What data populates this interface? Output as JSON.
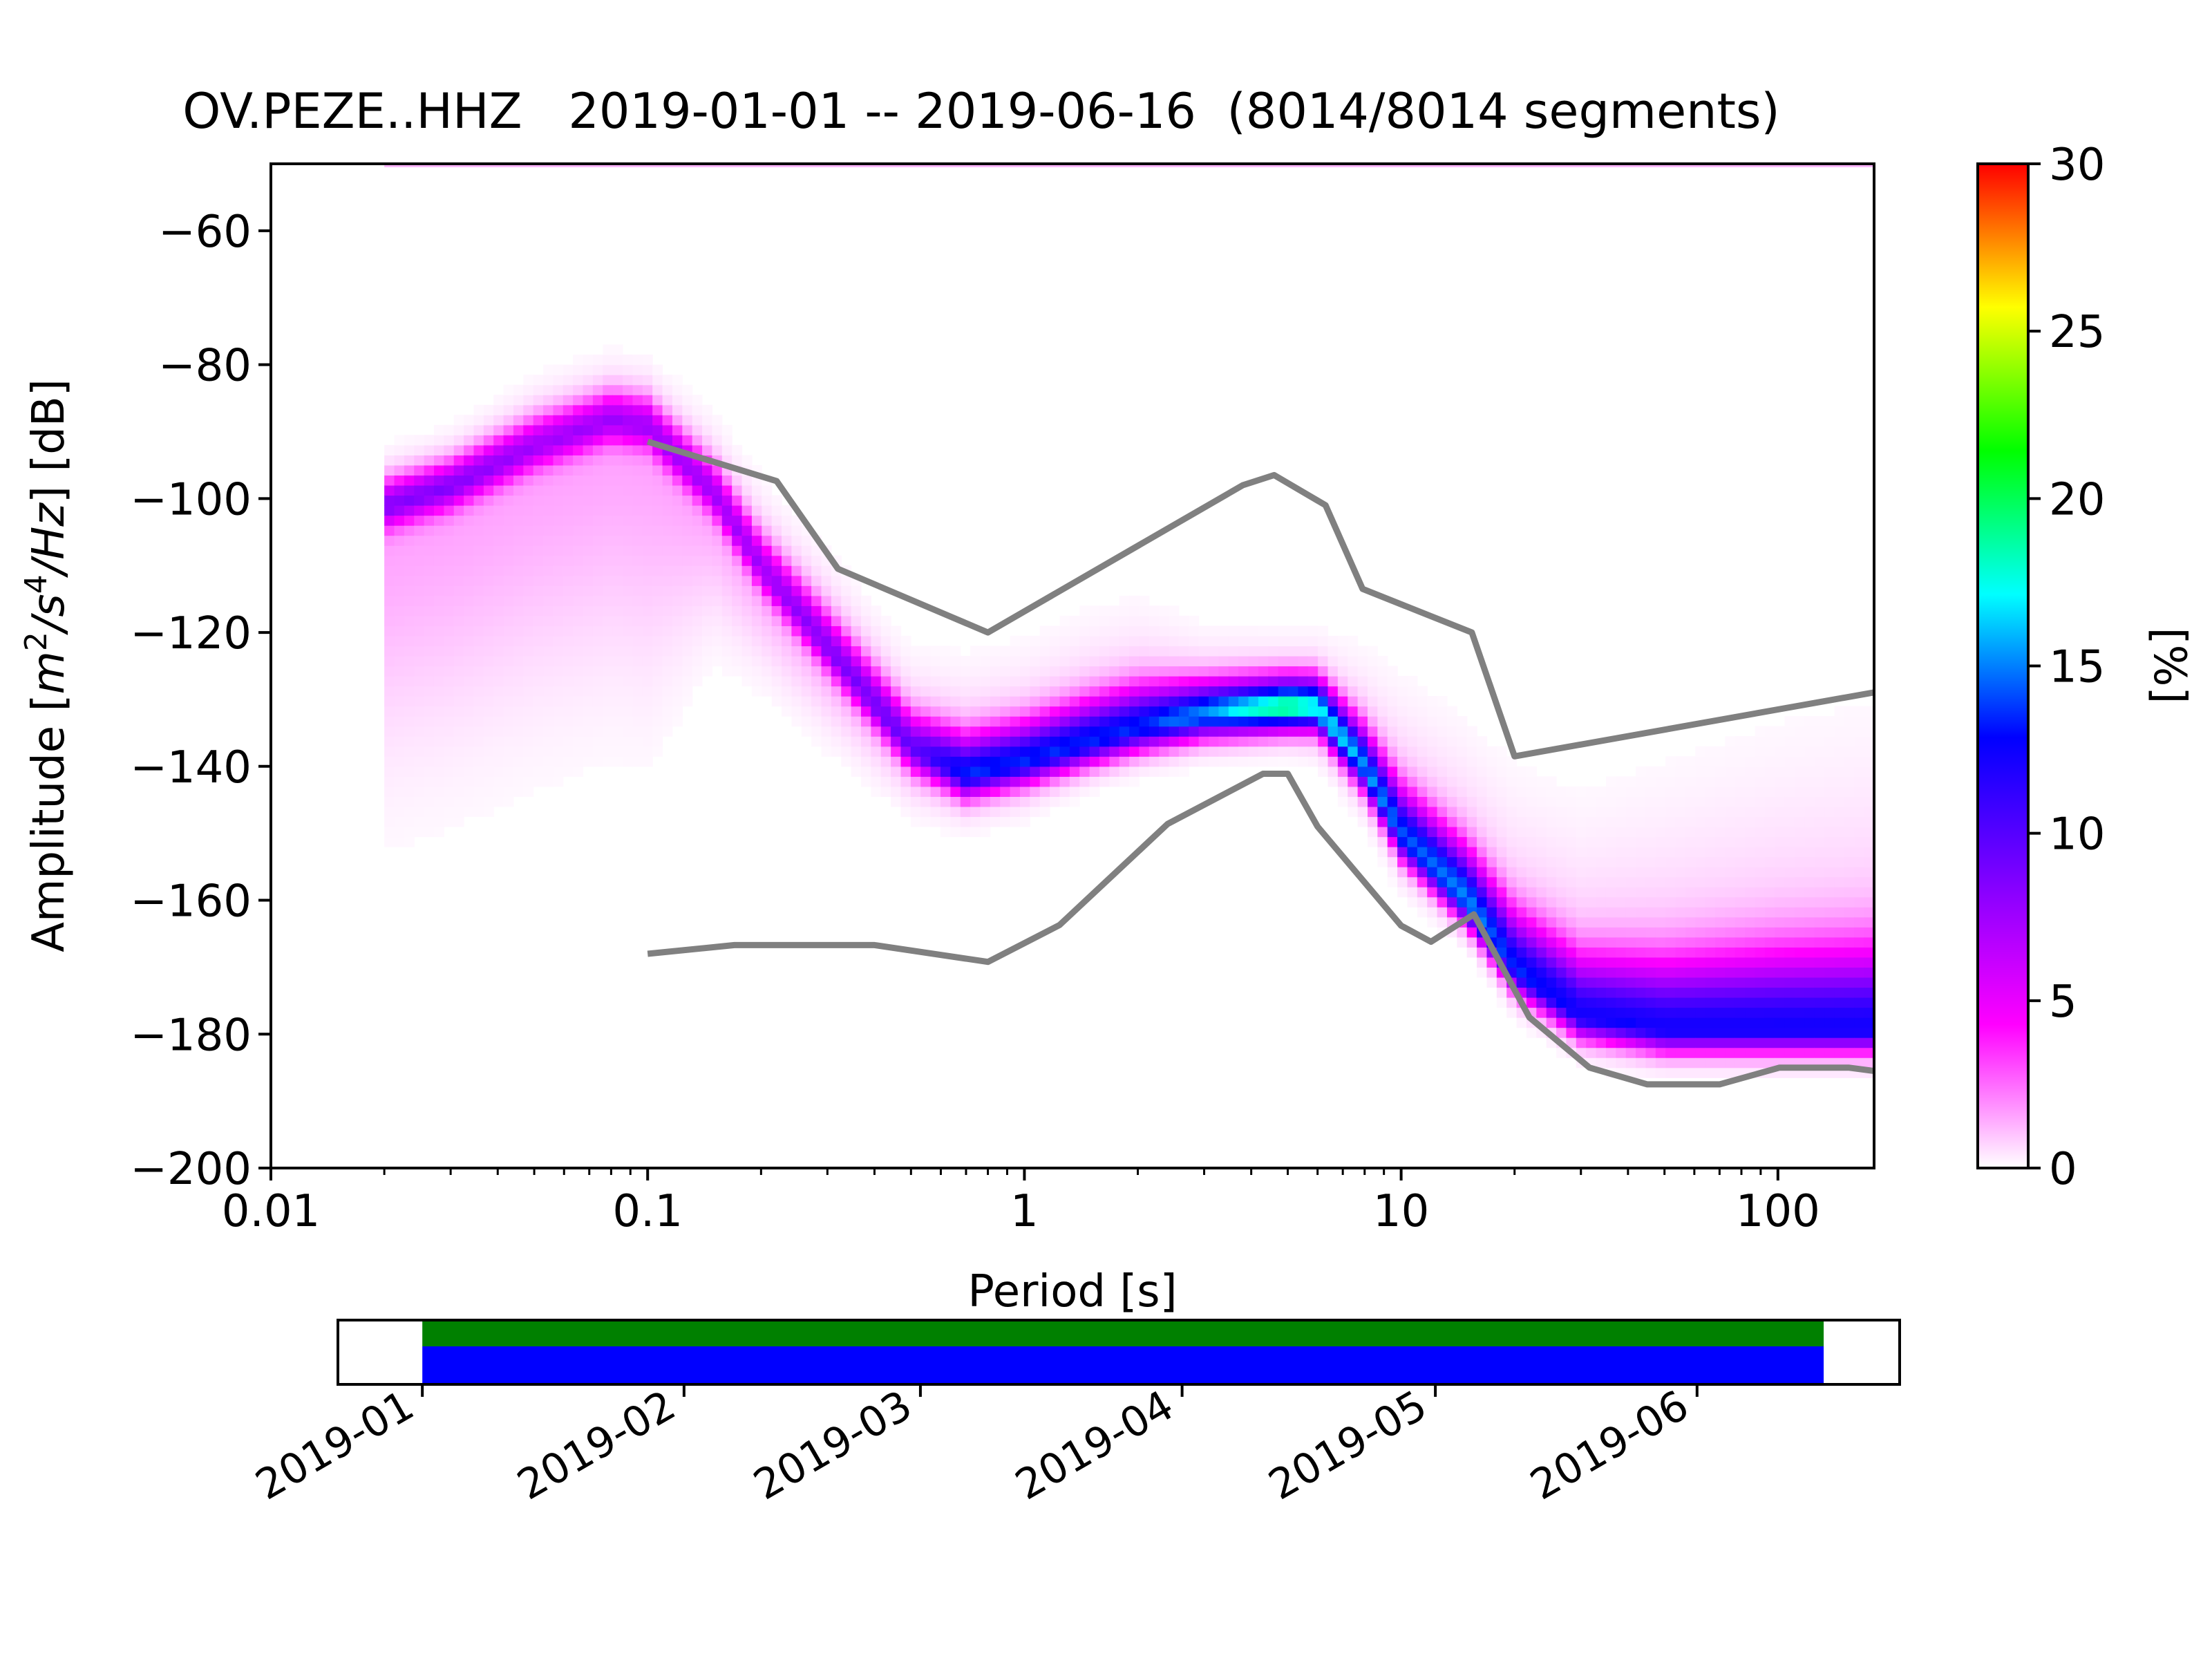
{
  "title": "OV.PEZE..HHZ   2019-01-01 -- 2019-06-16  (8014/8014 segments)",
  "chart_data": {
    "type": "heatmap",
    "title": "OV.PEZE..HHZ   2019-01-01 -- 2019-06-16  (8014/8014 segments)",
    "xlabel": "Period [s]",
    "ylabel": {
      "prefix": "Amplitude [",
      "m": "m",
      "m_exp": "2",
      "s": "/s",
      "s_exp": "4",
      "hz": "/Hz",
      "suffix": "] [dB]"
    },
    "x_scale": "log",
    "xlim": [
      0.01,
      180
    ],
    "ylim": [
      -200,
      -50
    ],
    "x_ticks": [
      {
        "value": 0.01,
        "label": "0.01"
      },
      {
        "value": 0.1,
        "label": "0.1"
      },
      {
        "value": 1,
        "label": "1"
      },
      {
        "value": 10,
        "label": "10"
      },
      {
        "value": 100,
        "label": "100"
      }
    ],
    "y_ticks": [
      {
        "value": -60,
        "label": "−60"
      },
      {
        "value": -80,
        "label": "−80"
      },
      {
        "value": -100,
        "label": "−100"
      },
      {
        "value": -120,
        "label": "−120"
      },
      {
        "value": -140,
        "label": "−140"
      },
      {
        "value": -160,
        "label": "−160"
      },
      {
        "value": -180,
        "label": "−180"
      },
      {
        "value": -200,
        "label": "−200"
      }
    ],
    "colorbar": {
      "label": "[%]",
      "range": [
        0,
        30
      ],
      "ticks": [
        {
          "value": 0,
          "label": "0"
        },
        {
          "value": 5,
          "label": "5"
        },
        {
          "value": 10,
          "label": "10"
        },
        {
          "value": 15,
          "label": "15"
        },
        {
          "value": 20,
          "label": "20"
        },
        {
          "value": 25,
          "label": "25"
        },
        {
          "value": 30,
          "label": "30"
        }
      ],
      "colormap": [
        "#ffffff",
        "#ff00ff",
        "#8000ff",
        "#0000ff",
        "#00ffff",
        "#00ff00",
        "#ffff00",
        "#ff0000"
      ]
    },
    "density_bands": {
      "x_nodes": [
        0.02,
        0.03,
        0.05,
        0.08,
        0.1,
        0.15,
        0.2,
        0.3,
        0.5,
        0.7,
        1,
        1.5,
        2,
        3,
        5,
        6,
        8,
        10,
        15,
        20,
        30,
        50,
        100,
        180
      ],
      "mode_db": [
        -101,
        -98,
        -92,
        -88,
        -89,
        -99,
        -110,
        -122,
        -137,
        -141,
        -139,
        -136,
        -134,
        -132,
        -131,
        -131,
        -140,
        -150,
        -160,
        -170,
        -177,
        -179,
        -179,
        -179
      ],
      "peak_percent": [
        7,
        7,
        6,
        6,
        6,
        6,
        6,
        7,
        8,
        12,
        12,
        12,
        12,
        14,
        18,
        16,
        14,
        13,
        14,
        12,
        11,
        11,
        11,
        11
      ],
      "spread_up_db": [
        4,
        4,
        5,
        5,
        5,
        6,
        7,
        8,
        8,
        10,
        10,
        11,
        11,
        7,
        6,
        6,
        10,
        14,
        16,
        18,
        20,
        24,
        28,
        30
      ],
      "spread_down_db": [
        30,
        30,
        30,
        30,
        30,
        14,
        10,
        8,
        5,
        4,
        4,
        3,
        3,
        3,
        3,
        4,
        4,
        4,
        3,
        3,
        3,
        3,
        3,
        3
      ],
      "top_edge_db": -50
    },
    "series": [
      {
        "role": "high-noise-model",
        "color": "#808080",
        "x": [
          0.1,
          0.22,
          0.32,
          0.8,
          3.8,
          4.6,
          6.3,
          7.9,
          15.4,
          20,
          354.8
        ],
        "y": [
          -91.5,
          -97.4,
          -110.5,
          -120,
          -98,
          -96.5,
          -101,
          -113.5,
          -120,
          -138.5,
          -126
        ]
      },
      {
        "role": "low-noise-model",
        "color": "#808080",
        "x": [
          0.1,
          0.17,
          0.4,
          0.8,
          1.24,
          2.4,
          4.3,
          5.0,
          6.0,
          10.0,
          12.0,
          15.6,
          21.9,
          31.6,
          45.0,
          70.0,
          101.0,
          154.0,
          180.0
        ],
        "y": [
          -168,
          -166.7,
          -166.7,
          -169.2,
          -163.7,
          -148.6,
          -141.1,
          -141.1,
          -149,
          -163.8,
          -166.2,
          -162.1,
          -177.5,
          -185,
          -187.5,
          -187.5,
          -185,
          -185,
          -185.5
        ]
      }
    ]
  },
  "timeline": {
    "tick_labels": [
      "2019-01",
      "2019-02",
      "2019-03",
      "2019-04",
      "2019-05",
      "2019-06"
    ],
    "tick_dates": [
      "2019-01-01",
      "2019-02-01",
      "2019-03-01",
      "2019-04-01",
      "2019-05-01",
      "2019-06-01"
    ],
    "range": [
      "2018-12-22",
      "2019-06-25"
    ],
    "coverage": [
      "2019-01-01",
      "2019-06-16"
    ],
    "colors": {
      "processed": "#008000",
      "available": "#0000ff"
    }
  }
}
